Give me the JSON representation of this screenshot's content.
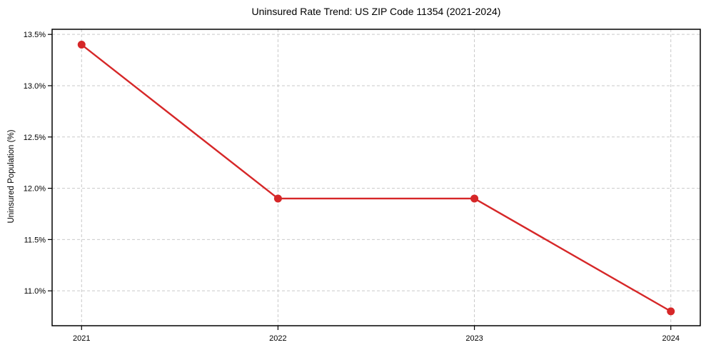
{
  "title": "Uninsured Rate Trend: US ZIP Code 11354 (2021-2024)",
  "chart_data": {
    "type": "line",
    "title": "Uninsured Rate Trend: US ZIP Code 11354 (2021-2024)",
    "xlabel": "",
    "ylabel": "Uninsured Population (%)",
    "x": [
      2021,
      2022,
      2023,
      2024
    ],
    "values": [
      13.4,
      11.9,
      11.9,
      10.8
    ],
    "x_tick_labels": [
      "2021",
      "2022",
      "2023",
      "2024"
    ],
    "x_tick_values": [
      2021,
      2022,
      2023,
      2024
    ],
    "y_tick_labels": [
      "13.5%",
      "13.0%",
      "12.5%",
      "12.0%",
      "11.5%",
      "11.0%"
    ],
    "y_tick_values": [
      13.5,
      13.0,
      12.5,
      12.0,
      11.5,
      11.0
    ],
    "xlim": [
      2020.85,
      2024.15
    ],
    "ylim": [
      10.66,
      13.55
    ],
    "grid": true,
    "grid_style": "dashed",
    "legend": "none",
    "colors": {
      "line": "#d62728",
      "marker": "#d62728",
      "grid": "#c9c9c9",
      "spine": "#000000",
      "background": "#ffffff",
      "text": "#000000"
    }
  }
}
